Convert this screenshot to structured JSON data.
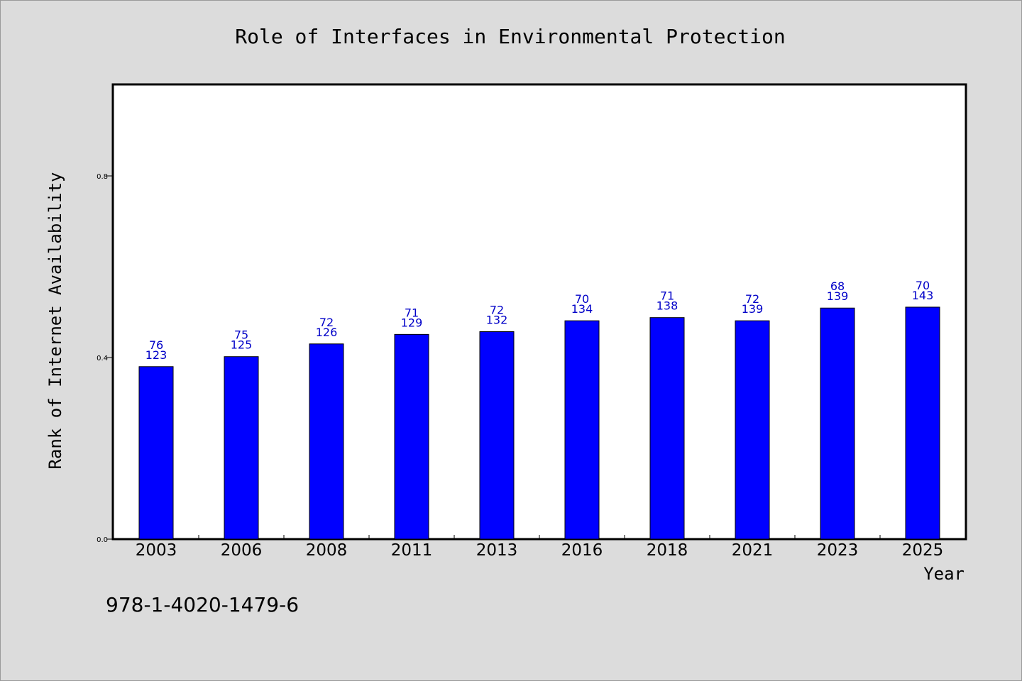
{
  "chart_data": {
    "type": "bar",
    "title": "Role of Interfaces in Environmental Protection",
    "xlabel": "Year",
    "ylabel": "Rank of Internet Availability",
    "categories": [
      "2003",
      "2006",
      "2008",
      "2011",
      "2013",
      "2016",
      "2018",
      "2021",
      "2023",
      "2025"
    ],
    "values": [
      0.38,
      0.402,
      0.43,
      0.451,
      0.457,
      0.481,
      0.488,
      0.481,
      0.509,
      0.511
    ],
    "label_top": [
      "76",
      "75",
      "72",
      "71",
      "72",
      "70",
      "71",
      "72",
      "68",
      "70"
    ],
    "label_bottom": [
      "123",
      "125",
      "126",
      "129",
      "132",
      "134",
      "138",
      "139",
      "139",
      "143"
    ],
    "ylim": [
      0,
      1.0
    ],
    "yticks": [
      0.0,
      0.4,
      0.8
    ],
    "ytick_labels": [
      "0.0",
      "0.4",
      "0.8"
    ],
    "grid": false,
    "colors": {
      "bar": "#0000ff",
      "label": "#0000c8",
      "background": "#dcdcdc",
      "plot": "#ffffff"
    }
  },
  "footer": {
    "isbn": "978-1-4020-1479-6"
  }
}
